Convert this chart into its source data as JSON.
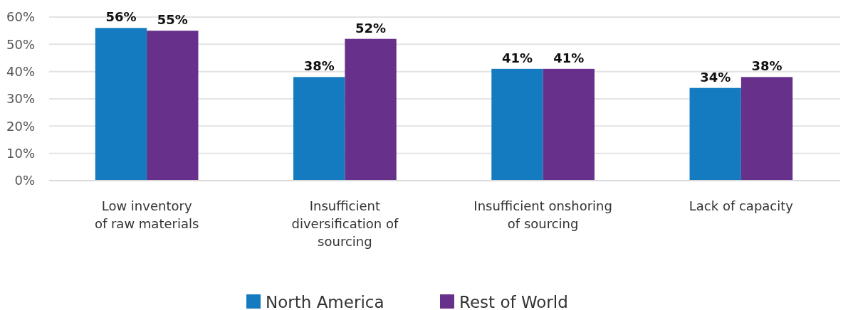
{
  "chart_data": {
    "type": "bar",
    "categories": [
      "Low inventory\nof raw materials",
      "Insufficient\ndiversification of\nsourcing",
      "Insufficient onshoring\nof sourcing",
      "Lack of capacity"
    ],
    "series": [
      {
        "name": "North America",
        "color": "#147bc1",
        "values": [
          56,
          38,
          41,
          34
        ]
      },
      {
        "name": "Rest of World",
        "color": "#66308b",
        "values": [
          55,
          52,
          41,
          38
        ]
      }
    ],
    "ylim": [
      0,
      60
    ],
    "yticks": [
      {
        "value": 0,
        "label": "0%"
      },
      {
        "value": 10,
        "label": "10%"
      },
      {
        "value": 20,
        "label": "20%"
      },
      {
        "value": 30,
        "label": "30%"
      },
      {
        "value": 40,
        "label": "40%"
      },
      {
        "value": 50,
        "label": "50%"
      },
      {
        "value": 60,
        "label": "60%"
      }
    ],
    "grid": "y",
    "legend": "bottom",
    "value_labels": [
      [
        "56%",
        "38%",
        "41%",
        "34%"
      ],
      [
        "55%",
        "52%",
        "41%",
        "38%"
      ]
    ]
  }
}
